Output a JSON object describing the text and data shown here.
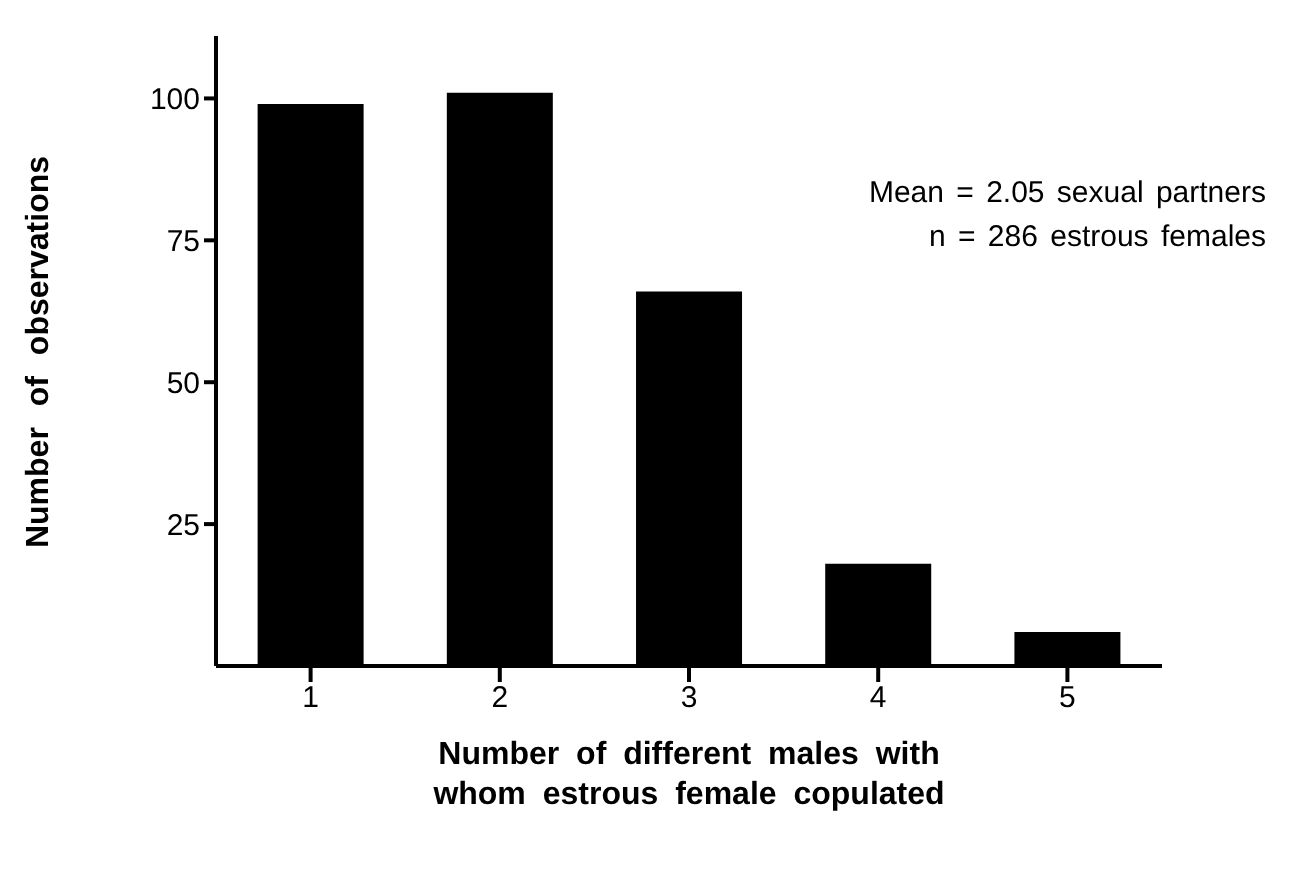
{
  "chart_data": {
    "type": "bar",
    "xlabel": "Number of different males with\nwhom estrous female copulated",
    "ylabel": "Number of observations",
    "categories": [
      "1",
      "2",
      "3",
      "4",
      "5"
    ],
    "values": [
      99,
      101,
      66,
      18,
      6
    ],
    "color": "#000000",
    "ylim": [
      0,
      111
    ],
    "yticks": [
      25,
      50,
      75,
      100
    ],
    "grid": false,
    "annotations": [
      "Mean = 2.05 sexual partners",
      "n = 286 estrous females"
    ]
  }
}
